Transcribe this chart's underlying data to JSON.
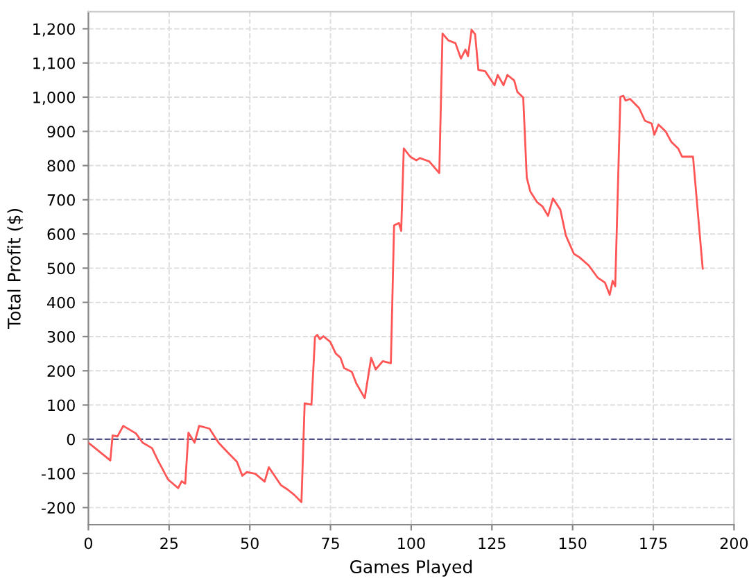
{
  "chart_data": {
    "type": "line",
    "xlabel": "Games Played",
    "ylabel": "Total Profit ($)",
    "xlim": [
      0,
      200
    ],
    "ylim": [
      -250,
      1250
    ],
    "xticks": [
      0,
      25,
      50,
      75,
      100,
      125,
      150,
      175,
      200
    ],
    "yticks": [
      {
        "value": -200,
        "label": "-200"
      },
      {
        "value": -100,
        "label": "-100"
      },
      0,
      100,
      200,
      300,
      400,
      500,
      600,
      700,
      800,
      900,
      {
        "value": 1000,
        "label": "1,000"
      },
      {
        "value": 1100,
        "label": "1,100"
      },
      {
        "value": 1200,
        "label": "1,200"
      }
    ],
    "grid": true,
    "marker": "none",
    "line_style": "solid",
    "ref_lines": [
      {
        "axis": "y",
        "value": 0,
        "color": "#50508a",
        "line_style": "dashed"
      }
    ],
    "series": [
      {
        "color": "#ff5555",
        "x": [
          0,
          6.8,
          7.5,
          9,
          10.8,
          14.7,
          16.8,
          19.7,
          21.6,
          24.7,
          27.8,
          28.9,
          30,
          31,
          32.9,
          34.3,
          37.5,
          40.3,
          43.2,
          46,
          47.7,
          49.1,
          51.7,
          54.6,
          55.9,
          59.6,
          61.7,
          63.8,
          66,
          67,
          69.1,
          70.2,
          70.9,
          71.7,
          72.8,
          74.9,
          76.6,
          78.1,
          79.2,
          81.6,
          83,
          85.6,
          87.6,
          89,
          91.2,
          93.7,
          94.7,
          96.2,
          96.9,
          97.7,
          99.7,
          101.6,
          102.7,
          105.6,
          108.7,
          109.7,
          111.5,
          113.7,
          115.4,
          116.8,
          117.6,
          118.7,
          119.8,
          120.8,
          122.9,
          125.8,
          126.8,
          128.6,
          129.8,
          131.9,
          132.9,
          134.7,
          135.8,
          136.9,
          139,
          140.7,
          142.4,
          143.9,
          146.2,
          147.9,
          150.4,
          152.1,
          155,
          157.8,
          160,
          161.5,
          162.4,
          163.2,
          164.8,
          165.7,
          166.4,
          167.8,
          170.6,
          172.4,
          174.5,
          175.3,
          176.6,
          178.8,
          180.6,
          182.7,
          183.9,
          187.3,
          190.3
        ],
        "values": [
          -10,
          -62,
          11,
          8,
          39,
          17,
          -10,
          -26,
          -63,
          -118,
          -143,
          -123,
          -130,
          19,
          -10,
          39,
          31,
          -10,
          -39,
          -66,
          -107,
          -96,
          -101,
          -124,
          -82,
          -134,
          -147,
          -163,
          -184,
          105,
          101,
          299,
          305,
          292,
          301,
          285,
          251,
          238,
          208,
          197,
          163,
          120,
          238,
          204,
          228,
          222,
          625,
          632,
          609,
          850,
          826,
          815,
          822,
          812,
          778,
          1186,
          1166,
          1158,
          1113,
          1139,
          1120,
          1197,
          1184,
          1080,
          1076,
          1035,
          1065,
          1035,
          1065,
          1049,
          1015,
          999,
          765,
          724,
          693,
          680,
          653,
          704,
          671,
          596,
          542,
          532,
          508,
          472,
          458,
          422,
          463,
          447,
          1001,
          1004,
          990,
          995,
          968,
          931,
          923,
          890,
          920,
          900,
          869,
          850,
          826,
          826,
          499
        ]
      }
    ]
  }
}
